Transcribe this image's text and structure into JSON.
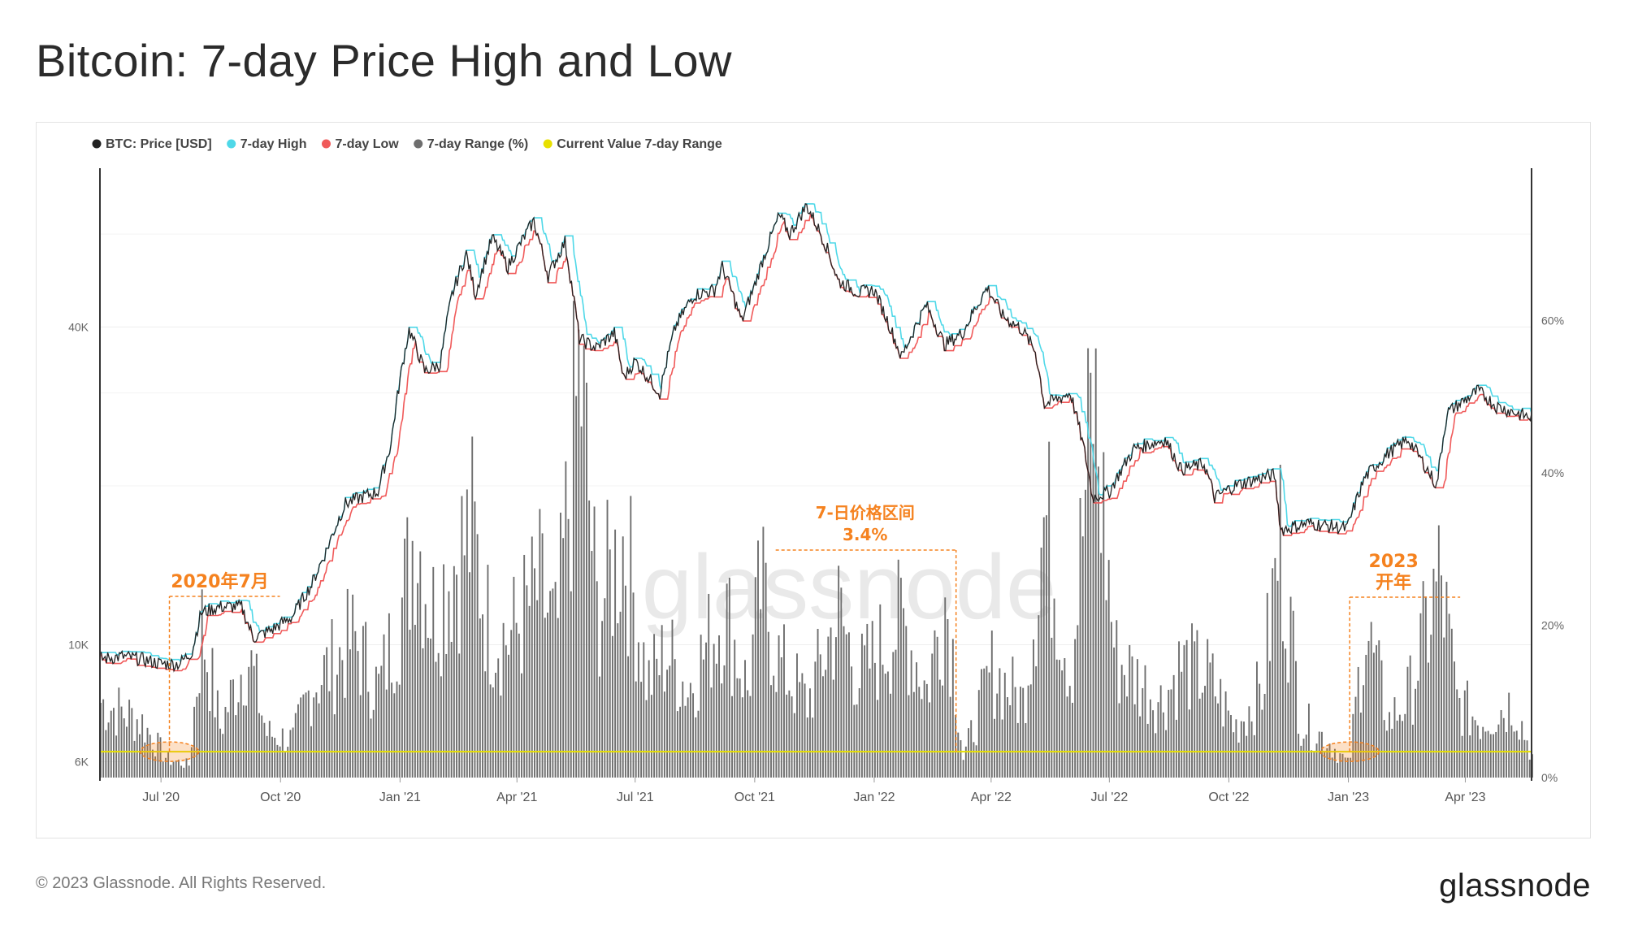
{
  "page": {
    "title": "Bitcoin: 7-day Price High and Low",
    "copyright": "© 2023 Glassnode. All Rights Reserved.",
    "logo_text": "glassnode",
    "watermark": "glassnode"
  },
  "colors": {
    "price": "#222222",
    "high": "#4fd8e8",
    "low": "#f05a5a",
    "range": "#6e6e6e",
    "current": "#e8e000",
    "annotation": "#f5821f"
  },
  "chart_data": {
    "type": "line+bar",
    "title": "Bitcoin: 7-day Price High and Low",
    "legend_position": "top-left",
    "legend": [
      {
        "key": "price",
        "label": "BTC: Price [USD]",
        "color": "#222222"
      },
      {
        "key": "high",
        "label": "7-day High",
        "color": "#4fd8e8"
      },
      {
        "key": "low",
        "label": "7-day Low",
        "color": "#f05a5a"
      },
      {
        "key": "range",
        "label": "7-day Range (%)",
        "color": "#6e6e6e"
      },
      {
        "key": "current",
        "label": "Current Value 7-day Range",
        "color": "#e8e000"
      }
    ],
    "x_ticks": [
      "Jul '20",
      "Oct '20",
      "Jan '21",
      "Apr '21",
      "Jul '21",
      "Oct '21",
      "Jan '22",
      "Apr '22",
      "Jul '22",
      "Oct '22",
      "Jan '23",
      "Apr '23"
    ],
    "x_tick_dates": [
      "2020-07-01",
      "2020-10-01",
      "2021-01-01",
      "2021-04-01",
      "2021-07-01",
      "2021-10-01",
      "2022-01-01",
      "2022-04-01",
      "2022-07-01",
      "2022-10-01",
      "2023-01-01",
      "2023-04-01"
    ],
    "x_range": [
      "2020-05-15",
      "2023-05-22"
    ],
    "y_left": {
      "scale": "log",
      "ticks": [
        {
          "label": "6K",
          "value": 6000
        },
        {
          "label": "10K",
          "value": 10000
        },
        {
          "label": "40K",
          "value": 40000
        }
      ],
      "range": [
        5600,
        80000
      ]
    },
    "y_right": {
      "unit": "%",
      "ticks": [
        {
          "label": "0%",
          "value": 0
        },
        {
          "label": "20%",
          "value": 20
        },
        {
          "label": "40%",
          "value": 40
        },
        {
          "label": "60%",
          "value": 60
        }
      ],
      "range": [
        0,
        80
      ]
    },
    "price_series": [
      [
        "2020-05-15",
        9400
      ],
      [
        "2020-06-01",
        9500
      ],
      [
        "2020-06-15",
        9400
      ],
      [
        "2020-07-01",
        9200
      ],
      [
        "2020-07-15",
        9200
      ],
      [
        "2020-07-25",
        9700
      ],
      [
        "2020-08-01",
        11500
      ],
      [
        "2020-08-15",
        11800
      ],
      [
        "2020-09-01",
        11800
      ],
      [
        "2020-09-10",
        10300
      ],
      [
        "2020-09-25",
        10700
      ],
      [
        "2020-10-10",
        11300
      ],
      [
        "2020-10-25",
        13000
      ],
      [
        "2020-11-05",
        15000
      ],
      [
        "2020-11-20",
        18500
      ],
      [
        "2020-12-01",
        19000
      ],
      [
        "2020-12-15",
        19500
      ],
      [
        "2020-12-25",
        24000
      ],
      [
        "2021-01-08",
        39500
      ],
      [
        "2021-01-20",
        33000
      ],
      [
        "2021-02-01",
        34000
      ],
      [
        "2021-02-10",
        46000
      ],
      [
        "2021-02-21",
        55000
      ],
      [
        "2021-02-28",
        46000
      ],
      [
        "2021-03-13",
        59000
      ],
      [
        "2021-03-25",
        52000
      ],
      [
        "2021-04-14",
        63500
      ],
      [
        "2021-04-25",
        50000
      ],
      [
        "2021-05-08",
        58000
      ],
      [
        "2021-05-12",
        50000
      ],
      [
        "2021-05-19",
        38000
      ],
      [
        "2021-06-01",
        36500
      ],
      [
        "2021-06-15",
        39000
      ],
      [
        "2021-06-22",
        32000
      ],
      [
        "2021-07-01",
        34500
      ],
      [
        "2021-07-20",
        30000
      ],
      [
        "2021-08-01",
        40000
      ],
      [
        "2021-08-15",
        46000
      ],
      [
        "2021-08-31",
        47000
      ],
      [
        "2021-09-06",
        52000
      ],
      [
        "2021-09-21",
        41000
      ],
      [
        "2021-10-01",
        48000
      ],
      [
        "2021-10-20",
        65000
      ],
      [
        "2021-10-28",
        60000
      ],
      [
        "2021-11-10",
        68000
      ],
      [
        "2021-11-25",
        57000
      ],
      [
        "2021-12-04",
        49000
      ],
      [
        "2021-12-20",
        46500
      ],
      [
        "2022-01-01",
        47000
      ],
      [
        "2022-01-10",
        41800
      ],
      [
        "2022-01-22",
        35000
      ],
      [
        "2022-02-10",
        44000
      ],
      [
        "2022-02-24",
        37000
      ],
      [
        "2022-03-10",
        39000
      ],
      [
        "2022-03-29",
        47500
      ],
      [
        "2022-04-10",
        42000
      ],
      [
        "2022-04-25",
        39500
      ],
      [
        "2022-05-05",
        36000
      ],
      [
        "2022-05-12",
        28500
      ],
      [
        "2022-06-01",
        30000
      ],
      [
        "2022-06-13",
        22500
      ],
      [
        "2022-06-18",
        19000
      ],
      [
        "2022-07-01",
        19500
      ],
      [
        "2022-07-20",
        23500
      ],
      [
        "2022-08-13",
        24500
      ],
      [
        "2022-08-25",
        21500
      ],
      [
        "2022-09-12",
        22000
      ],
      [
        "2022-09-20",
        19000
      ],
      [
        "2022-10-05",
        20000
      ],
      [
        "2022-10-28",
        20800
      ],
      [
        "2022-11-05",
        21000
      ],
      [
        "2022-11-10",
        16500
      ],
      [
        "2022-12-01",
        17000
      ],
      [
        "2022-12-31",
        16600
      ],
      [
        "2023-01-14",
        20800
      ],
      [
        "2023-01-31",
        23000
      ],
      [
        "2023-02-16",
        24500
      ],
      [
        "2023-03-10",
        20000
      ],
      [
        "2023-03-18",
        27500
      ],
      [
        "2023-04-11",
        30300
      ],
      [
        "2023-04-25",
        28300
      ],
      [
        "2023-05-10",
        27500
      ],
      [
        "2023-05-22",
        26900
      ]
    ],
    "range_series": [
      [
        "2020-05-15",
        12
      ],
      [
        "2020-06-15",
        9
      ],
      [
        "2020-07-05",
        3
      ],
      [
        "2020-07-22",
        2
      ],
      [
        "2020-08-01",
        24
      ],
      [
        "2020-08-15",
        8
      ],
      [
        "2020-09-05",
        20
      ],
      [
        "2020-09-20",
        7
      ],
      [
        "2020-10-10",
        6
      ],
      [
        "2020-10-25",
        15
      ],
      [
        "2020-11-10",
        18
      ],
      [
        "2020-11-26",
        22
      ],
      [
        "2020-12-15",
        14
      ],
      [
        "2021-01-05",
        30
      ],
      [
        "2021-01-12",
        41
      ],
      [
        "2021-01-25",
        26
      ],
      [
        "2021-02-10",
        34
      ],
      [
        "2021-02-25",
        39
      ],
      [
        "2021-03-10",
        24
      ],
      [
        "2021-03-25",
        22
      ],
      [
        "2021-04-18",
        30
      ],
      [
        "2021-05-01",
        22
      ],
      [
        "2021-05-19",
        65
      ],
      [
        "2021-06-01",
        26
      ],
      [
        "2021-06-22",
        38
      ],
      [
        "2021-07-10",
        15
      ],
      [
        "2021-07-25",
        20
      ],
      [
        "2021-08-10",
        14
      ],
      [
        "2021-09-07",
        27
      ],
      [
        "2021-09-25",
        14
      ],
      [
        "2021-10-05",
        30
      ],
      [
        "2021-10-20",
        18
      ],
      [
        "2021-11-10",
        12
      ],
      [
        "2021-12-04",
        26
      ],
      [
        "2021-12-20",
        16
      ],
      [
        "2022-01-22",
        25
      ],
      [
        "2022-02-10",
        14
      ],
      [
        "2022-02-24",
        29
      ],
      [
        "2022-03-01",
        22
      ],
      [
        "2022-03-10",
        3
      ],
      [
        "2022-04-01",
        17
      ],
      [
        "2022-04-25",
        12
      ],
      [
        "2022-05-12",
        42
      ],
      [
        "2022-06-01",
        16
      ],
      [
        "2022-06-18",
        61
      ],
      [
        "2022-07-05",
        19
      ],
      [
        "2022-07-20",
        16
      ],
      [
        "2022-08-10",
        12
      ],
      [
        "2022-08-25",
        18
      ],
      [
        "2022-09-15",
        16
      ],
      [
        "2022-10-05",
        8
      ],
      [
        "2022-10-26",
        14
      ],
      [
        "2022-11-09",
        38
      ],
      [
        "2022-11-25",
        9
      ],
      [
        "2022-12-15",
        6
      ],
      [
        "2023-01-01",
        2
      ],
      [
        "2023-01-13",
        24
      ],
      [
        "2023-02-01",
        9
      ],
      [
        "2023-02-16",
        13
      ],
      [
        "2023-03-12",
        32
      ],
      [
        "2023-03-25",
        12
      ],
      [
        "2023-04-12",
        9
      ],
      [
        "2023-05-08",
        12
      ],
      [
        "2023-05-22",
        3.4
      ]
    ],
    "current_value_7day_range": 3.4,
    "annotations": [
      {
        "id": "jul-2020",
        "text": "2020年7月",
        "date": "2020-07-15"
      },
      {
        "id": "min-range",
        "text": "7-日价格区间",
        "value_text": "3.4%",
        "date": "2022-03-05"
      },
      {
        "id": "start-2023",
        "text": "2023",
        "text2": "开年",
        "date": "2023-01-02"
      }
    ]
  }
}
